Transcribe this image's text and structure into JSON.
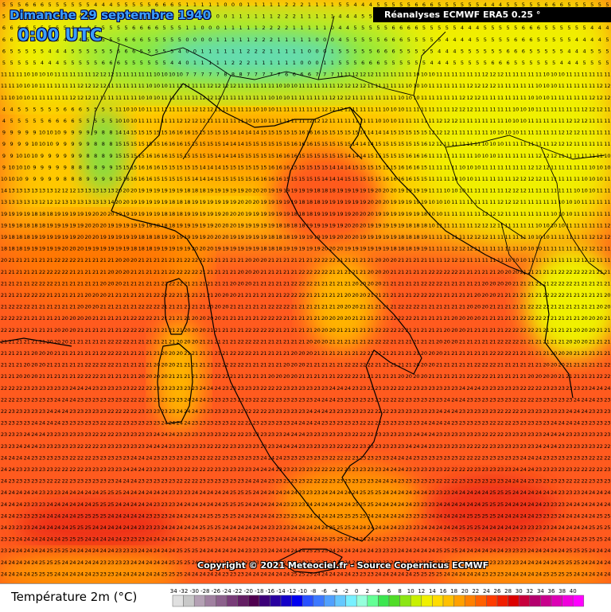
{
  "header": {
    "date": "Dimanche 29 septembre 1940",
    "time": "0:00 UTC",
    "source": "Réanalyses ECMWF ERA5 0.25 °"
  },
  "footer": {
    "copyright": "Copyright © 2021 Meteociel.fr - Source Copernicus ECMWF",
    "legend_title": "Température 2m (°C)"
  },
  "legend": {
    "ticks": [
      "-34",
      "-32",
      "-30",
      "-28",
      "-26",
      "-24",
      "-22",
      "-20",
      "-18",
      "-16",
      "-14",
      "-12",
      "-10",
      "-8",
      "-6",
      "-4",
      "-2",
      "0",
      "2",
      "4",
      "6",
      "8",
      "10",
      "12",
      "14",
      "16",
      "18",
      "20",
      "22",
      "24",
      "26",
      "28",
      "30",
      "32",
      "34",
      "36",
      "38",
      "40"
    ],
    "colors": [
      "#e0e0e0",
      "#c8c8c8",
      "#b4a0b4",
      "#a080a0",
      "#8c608c",
      "#783c78",
      "#641e64",
      "#500050",
      "#3c0078",
      "#2800a0",
      "#1400c8",
      "#0000f0",
      "#2850ff",
      "#3c78ff",
      "#50a0ff",
      "#64c8ff",
      "#78f0ff",
      "#96ffdc",
      "#64ff96",
      "#3ce650",
      "#50dc28",
      "#8ce614",
      "#c8f000",
      "#f0f000",
      "#ffdc00",
      "#ffc000",
      "#ffa000",
      "#ff8000",
      "#ff6000",
      "#ff3c00",
      "#f01e00",
      "#dc0000",
      "#c8003c",
      "#b4006e",
      "#c8008c",
      "#dc00b4",
      "#f000dc",
      "#ff00ff"
    ]
  }
}
